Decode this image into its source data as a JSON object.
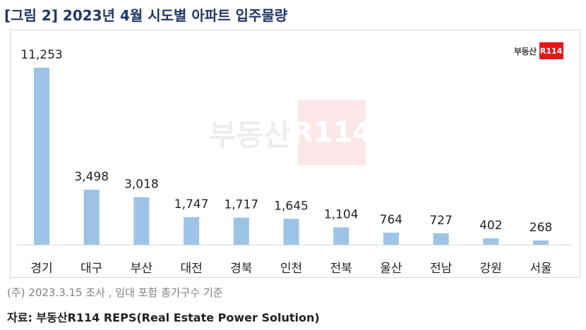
{
  "title": "[그림 2] 2023년 4월 시도별 아파트 입주물량",
  "logo": {
    "text": "부동산",
    "box": "R114"
  },
  "watermark": {
    "text": "부동산",
    "box": "R114"
  },
  "note": "(주) 2023.3.15 조사 , 임대 포함 총가구수 기준",
  "source": "자료: 부동산R114 REPS(Real Estate Power Solution)",
  "colors": {
    "bar": "#9dc3e6",
    "axis": "#d9d9d9",
    "title": "#1f3864",
    "logo_red": "#e8141b"
  },
  "chart_data": {
    "type": "bar",
    "categories": [
      "경기",
      "대구",
      "부산",
      "대전",
      "경북",
      "인천",
      "전북",
      "울산",
      "전남",
      "강원",
      "서울"
    ],
    "values": [
      11253,
      3498,
      3018,
      1747,
      1717,
      1645,
      1104,
      764,
      727,
      402,
      268
    ],
    "value_labels": [
      "11,253",
      "3,498",
      "3,018",
      "1,747",
      "1,717",
      "1,645",
      "1,104",
      "764",
      "727",
      "402",
      "268"
    ],
    "ylim": [
      0,
      11253
    ],
    "grid": false,
    "legend": "none"
  }
}
